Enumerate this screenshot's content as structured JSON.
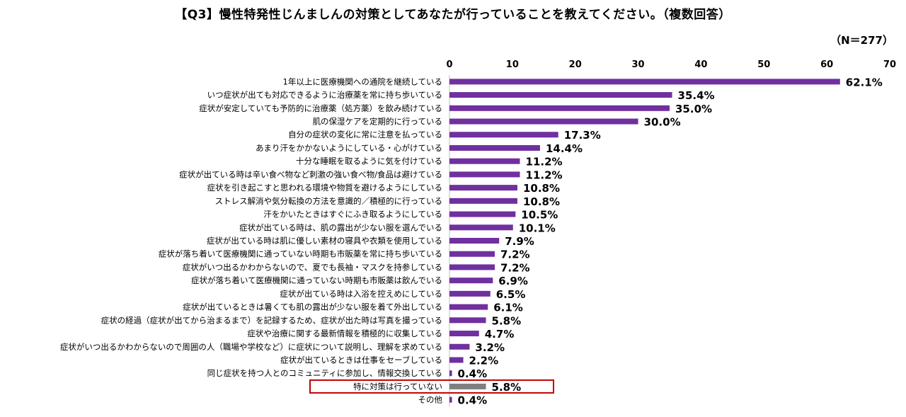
{
  "title": "【Q3】慢性特発性じんましんの対策としてあなたが行っていることを教えてください。（複数回答）",
  "sample_size": "（N＝277）",
  "colors": {
    "bar": "#7030a0",
    "bar_highlight": "#7f7f7f",
    "highlight_box": "#c00000",
    "axis": "#bfbfbf"
  },
  "chart_data": {
    "type": "bar",
    "orientation": "horizontal",
    "title": "【Q3】慢性特発性じんましんの対策としてあなたが行っていることを教えてください。（複数回答）",
    "xlabel": "",
    "ylabel": "",
    "xlim": [
      0,
      70
    ],
    "xticks": [
      0,
      10,
      20,
      30,
      40,
      50,
      60,
      70
    ],
    "grid": false,
    "value_suffix": "%",
    "highlighted_category": "特に対策は行っていない",
    "categories": [
      "1年以上に医療機関への通院を継続している",
      "いつ症状が出ても対応できるように治療薬を常に持ち歩いている",
      "症状が安定していても予防的に治療薬（処方薬）を飲み続けている",
      "肌の保湿ケアを定期的に行っている",
      "自分の症状の変化に常に注意を払っている",
      "あまり汗をかかないようにしている・心がけている",
      "十分な睡眠を取るように気を付けている",
      "症状が出ている時は辛い食べ物など刺激の強い食べ物/食品は避けている",
      "症状を引き起こすと思われる環境や物質を避けるようにしている",
      "ストレス解消や気分転換の方法を意識的／積極的に行っている",
      "汗をかいたときはすぐにふき取るようにしている",
      "症状が出ている時は、肌の露出が少ない服を選んでいる",
      "症状が出ている時は肌に優しい素材の寝具や衣類を使用している",
      "症状が落ち着いて医療機関に通っていない時期も市販薬を常に持ち歩いている",
      "症状がいつ出るかわからないので、夏でも長袖・マスクを持参している",
      "症状が落ち着いて医療機関に通っていない時期も市販薬は飲んでいる",
      "症状が出ている時は入浴を控えめにしている",
      "症状が出ているときは暑くても肌の露出が少ない服を着て外出している",
      "症状の経過（症状が出てから治まるまで）を記録するため、症状が出た時は写真を撮っている",
      "症状や治療に関する最新情報を積極的に収集している",
      "症状がいつ出るかわからないので周囲の人（職場や学校など）に症状について説明し、理解を求めている",
      "症状が出ているときは仕事をセーブしている",
      "同じ症状を持つ人とのコミュニティに参加し、情報交換している",
      "特に対策は行っていない",
      "その他"
    ],
    "values": [
      62.1,
      35.4,
      35.0,
      30.0,
      17.3,
      14.4,
      11.2,
      11.2,
      10.8,
      10.8,
      10.5,
      10.1,
      7.9,
      7.2,
      7.2,
      6.9,
      6.5,
      6.1,
      5.8,
      4.7,
      3.2,
      2.2,
      0.4,
      5.8,
      0.4
    ],
    "value_labels": [
      "62.1%",
      "35.4%",
      "35.0%",
      "30.0%",
      "17.3%",
      "14.4%",
      "11.2%",
      "11.2%",
      "10.8%",
      "10.8%",
      "10.5%",
      "10.1%",
      "7.9%",
      "7.2%",
      "7.2%",
      "6.9%",
      "6.5%",
      "6.1%",
      "5.8%",
      "4.7%",
      "3.2%",
      "2.2%",
      "0.4%",
      "5.8%",
      "0.4%"
    ]
  }
}
